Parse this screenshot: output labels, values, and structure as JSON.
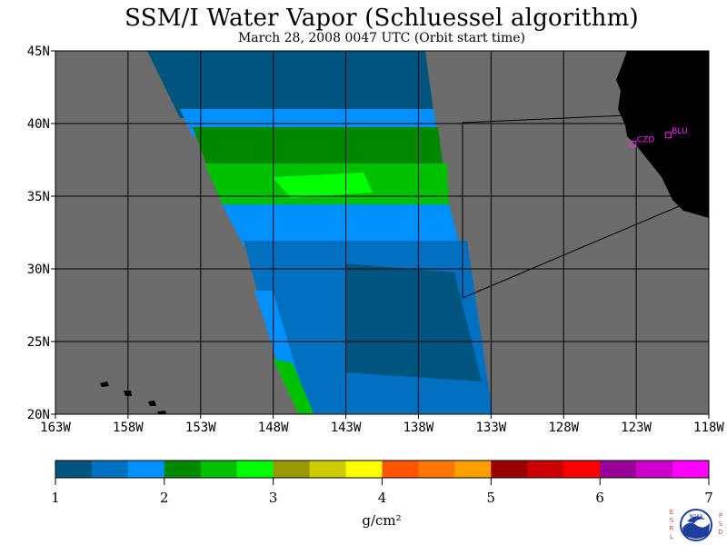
{
  "header": {
    "title": "SSM/I Water Vapor (Schluessel algorithm)",
    "subtitle": "March 28, 2008  0047 UTC  (Orbit start time)"
  },
  "map": {
    "lon_range": [
      -163,
      -118
    ],
    "lat_range": [
      20,
      45
    ],
    "x_ticks": [
      {
        "lon": -163,
        "label": "163W"
      },
      {
        "lon": -158,
        "label": "158W"
      },
      {
        "lon": -153,
        "label": "153W"
      },
      {
        "lon": -148,
        "label": "148W"
      },
      {
        "lon": -143,
        "label": "143W"
      },
      {
        "lon": -138,
        "label": "138W"
      },
      {
        "lon": -133,
        "label": "133W"
      },
      {
        "lon": -128,
        "label": "128W"
      },
      {
        "lon": -123,
        "label": "123W"
      },
      {
        "lon": -118,
        "label": "118W"
      }
    ],
    "y_ticks": [
      {
        "lat": 45,
        "label": "45N"
      },
      {
        "lat": 40,
        "label": "40N"
      },
      {
        "lat": 35,
        "label": "35N"
      },
      {
        "lat": 30,
        "label": "30N"
      },
      {
        "lat": 25,
        "label": "25N"
      },
      {
        "lat": 20,
        "label": "20N"
      }
    ],
    "grid": true,
    "stations": [
      {
        "id": "CZD",
        "lon": -123.2,
        "lat": 38.6
      },
      {
        "id": "BLU",
        "lon": -120.8,
        "lat": 39.2
      }
    ],
    "colors": {
      "no_data": "#6c6c6c",
      "land_north_america": "#000000",
      "grid": "#000000",
      "station": "#ff22ff"
    }
  },
  "colorbar": {
    "unit_label": "g/cm²",
    "min": 1,
    "max": 7,
    "tick_labels": [
      "1",
      "2",
      "3",
      "4",
      "5",
      "6",
      "7"
    ],
    "colors": [
      "#005580",
      "#0070c0",
      "#0090ff",
      "#008800",
      "#00c000",
      "#00ff00",
      "#999900",
      "#cccc00",
      "#ffff00",
      "#ff5500",
      "#ff7700",
      "#ffa000",
      "#990000",
      "#cc0000",
      "#ff0000",
      "#990099",
      "#cc00cc",
      "#ff00ff"
    ]
  },
  "logo": {
    "left_text": [
      "E",
      "S",
      "R",
      "L"
    ],
    "center_text": "NOAA",
    "right_text": [
      "P",
      "S",
      "D"
    ]
  }
}
